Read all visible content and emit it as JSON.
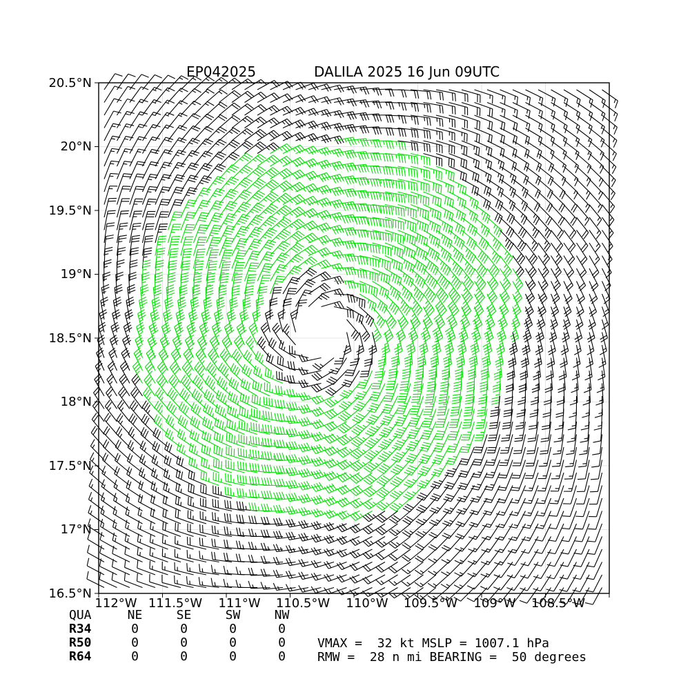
{
  "title": {
    "storm_id": "EP042025",
    "storm_info": "DALILA 2025 16 Jun 09UTC"
  },
  "map": {
    "lat_labels": [
      "20.5°N",
      "20°N",
      "19.5°N",
      "19°N",
      "18.5°N",
      "18°N",
      "17.5°N",
      "17°N",
      "16.5°N"
    ],
    "lon_labels": [
      "112°W",
      "111.5°W",
      "111°W",
      "110.5°W",
      "110°W",
      "109.5°W",
      "109°W",
      "108.5°W"
    ],
    "lat_range": [
      16.5,
      20.5
    ],
    "lon_range": [
      -112.0,
      -108.0
    ],
    "center": {
      "lat": 18.55,
      "lon": -110.25
    },
    "barb_colors": {
      "below_34kt": "#000000",
      "34kt_plus": "#00e000"
    },
    "gridlines": true
  },
  "quadrant_table": {
    "headers": [
      "QUA",
      "NE",
      "SE",
      "SW",
      "NW"
    ],
    "rows": [
      {
        "label": "R34",
        "values": [
          "0",
          "0",
          "0",
          "0"
        ]
      },
      {
        "label": "R50",
        "values": [
          "0",
          "0",
          "0",
          "0"
        ]
      },
      {
        "label": "R64",
        "values": [
          "0",
          "0",
          "0",
          "0"
        ]
      }
    ]
  },
  "stats": {
    "line1": "VMAX =  32 kt MSLP = 1007.1 hPa",
    "line2": "RMW =  28 n mi BEARING =  50 degrees"
  }
}
